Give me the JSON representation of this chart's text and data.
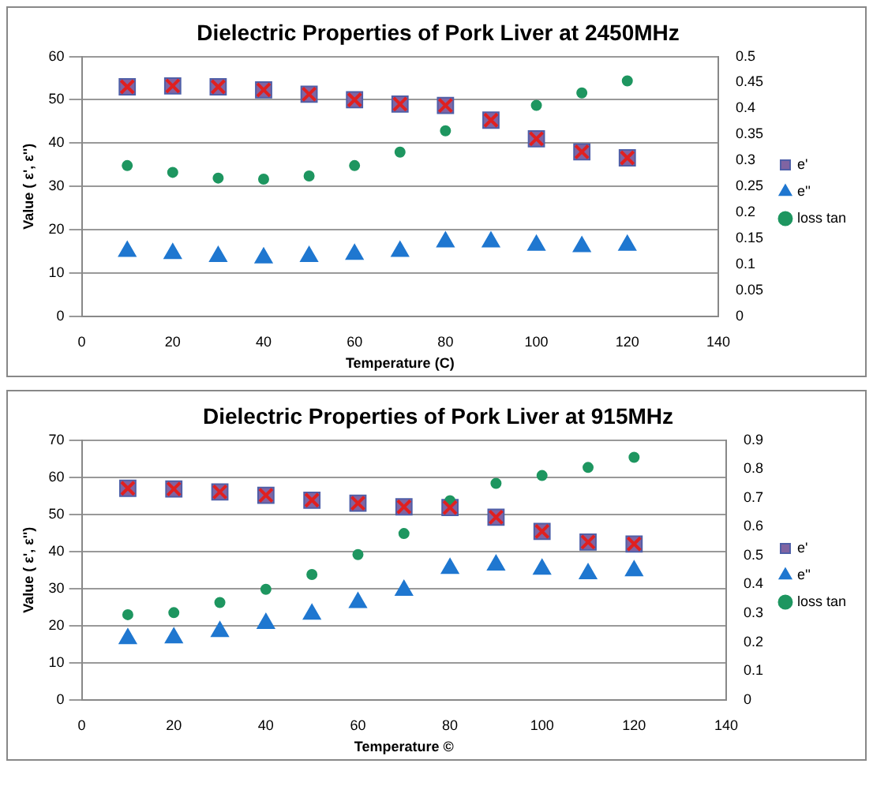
{
  "chart_data": [
    {
      "type": "scatter",
      "title": "Dielectric Properties of Pork Liver at 2450MHz",
      "xlabel": "Temperature (C)",
      "ylabel": "Value ( ε', ε'')",
      "x": [
        10,
        20,
        30,
        40,
        50,
        60,
        70,
        80,
        90,
        100,
        110,
        120
      ],
      "series": [
        {
          "name": "e'",
          "color": "#8064a2",
          "marker": "square",
          "values": [
            53,
            53.2,
            53,
            52.3,
            51.3,
            50,
            49,
            48.7,
            45.3,
            41,
            38,
            36.6
          ]
        },
        {
          "name": "e''",
          "color": "#1f77d0",
          "marker": "triangle",
          "values": [
            15,
            14.5,
            13.8,
            13.5,
            13.8,
            14.3,
            15,
            17.2,
            17.2,
            16.4,
            16.1,
            16.4
          ]
        },
        {
          "name": "loss tan",
          "color": "#1e9660",
          "marker": "circle",
          "axis": "y2",
          "values": [
            0.29,
            0.277,
            0.266,
            0.264,
            0.27,
            0.29,
            0.316,
            0.357,
            null,
            0.406,
            0.43,
            0.453
          ]
        }
      ],
      "xlim": [
        0,
        140
      ],
      "xticks": [
        0,
        20,
        40,
        60,
        80,
        100,
        120,
        140
      ],
      "ylim": [
        0,
        60
      ],
      "yticks": [
        0,
        10,
        20,
        30,
        40,
        50,
        60
      ],
      "y2lim": [
        0,
        0.5
      ],
      "y2ticks": [
        0,
        0.05,
        0.1,
        0.15,
        0.2,
        0.25,
        0.3,
        0.35,
        0.4,
        0.45,
        0.5
      ],
      "grid": "y",
      "legend": "right"
    },
    {
      "type": "scatter",
      "title": "Dielectric Properties of Pork Liver at 915MHz",
      "xlabel": "Temperature ©",
      "ylabel": "Value ( ε', ε'')",
      "x": [
        10,
        20,
        30,
        40,
        50,
        60,
        70,
        80,
        90,
        100,
        110,
        120
      ],
      "series": [
        {
          "name": "e'",
          "color": "#8064a2",
          "marker": "square",
          "values": [
            57,
            56.8,
            56,
            55.1,
            53.8,
            53,
            52,
            51.8,
            49.2,
            45.4,
            42.5,
            42
          ]
        },
        {
          "name": "e''",
          "color": "#1f77d0",
          "marker": "triangle",
          "values": [
            16.5,
            16.7,
            18.4,
            20.6,
            23.1,
            26.2,
            29.5,
            35.4,
            36.3,
            35.2,
            34,
            34.8
          ]
        },
        {
          "name": "loss tan",
          "color": "#1e9660",
          "marker": "circle",
          "axis": "y2",
          "values": [
            0.295,
            0.302,
            0.337,
            0.383,
            0.434,
            0.503,
            0.576,
            0.69,
            0.75,
            0.777,
            0.805,
            0.84
          ]
        }
      ],
      "xlim": [
        0,
        140
      ],
      "xticks": [
        0,
        20,
        40,
        60,
        80,
        100,
        120,
        140
      ],
      "ylim": [
        0,
        70
      ],
      "yticks": [
        0,
        10,
        20,
        30,
        40,
        50,
        60,
        70
      ],
      "y2lim": [
        0,
        0.9
      ],
      "y2ticks": [
        0,
        0.1,
        0.2,
        0.3,
        0.4,
        0.5,
        0.6,
        0.7,
        0.8,
        0.9
      ],
      "grid": "y",
      "legend": "right"
    }
  ]
}
